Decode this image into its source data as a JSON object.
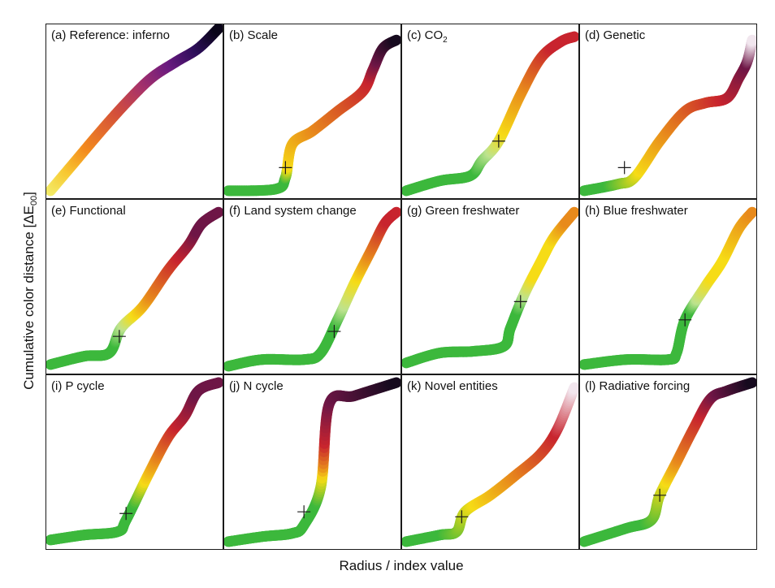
{
  "figure": {
    "xlabel": "Radius / index value",
    "ylabel_main": "Cumulative color distance [ΔE",
    "ylabel_sub": "00",
    "ylabel_close": "]"
  },
  "colors": {
    "green": "#3cb83c",
    "lightgreen": "#bde38f",
    "yellow": "#f6dc16",
    "orange": "#e88a1c",
    "red": "#c8242e",
    "darkred": "#6e1646",
    "black": "#150a1e",
    "white": "#f2e8f0"
  },
  "chart_data": [
    {
      "type": "line",
      "title": "(a) Reference: inferno",
      "xlim": [
        0,
        1
      ],
      "ylim": [
        0,
        1
      ],
      "x": [
        0,
        0.15,
        0.3,
        0.45,
        0.6,
        0.75,
        0.88,
        1
      ],
      "y": [
        0.02,
        0.2,
        0.38,
        0.55,
        0.7,
        0.8,
        0.88,
        1
      ],
      "colormap": [
        [
          "#f2ed6a",
          0
        ],
        [
          "#f8c932",
          0.12
        ],
        [
          "#f38a1e",
          0.25
        ],
        [
          "#d4503a",
          0.45
        ],
        [
          "#a8336a",
          0.6
        ],
        [
          "#6a1a80",
          0.75
        ],
        [
          "#2d0e5a",
          0.88
        ],
        [
          "#0a0518",
          1
        ]
      ],
      "marker": null
    },
    {
      "type": "line",
      "title": "(b) Scale",
      "xlim": [
        0,
        1
      ],
      "ylim": [
        0,
        1
      ],
      "x": [
        0,
        0.28,
        0.34,
        0.38,
        0.5,
        0.65,
        0.8,
        0.86,
        0.92,
        1
      ],
      "y": [
        0.02,
        0.03,
        0.1,
        0.3,
        0.38,
        0.5,
        0.62,
        0.75,
        0.88,
        0.93
      ],
      "colormap": [
        [
          "green",
          0
        ],
        [
          "green",
          0.25
        ],
        [
          "yellow",
          0.3
        ],
        [
          "orange",
          0.5
        ],
        [
          "red",
          0.8
        ],
        [
          "darkred",
          0.88
        ],
        [
          "black",
          1
        ]
      ],
      "marker": [
        0.34,
        0.16
      ]
    },
    {
      "type": "line",
      "title": "(c) CO",
      "title_sub": "2",
      "xlim": [
        0,
        1
      ],
      "ylim": [
        0,
        1
      ],
      "x": [
        0,
        0.2,
        0.38,
        0.45,
        0.55,
        0.68,
        0.8,
        0.92,
        1
      ],
      "y": [
        0.02,
        0.08,
        0.11,
        0.2,
        0.32,
        0.6,
        0.82,
        0.92,
        0.95
      ],
      "colormap": [
        [
          "green",
          0
        ],
        [
          "green",
          0.3
        ],
        [
          "lightgreen",
          0.4
        ],
        [
          "yellow",
          0.5
        ],
        [
          "orange",
          0.7
        ],
        [
          "red",
          0.9
        ],
        [
          "red",
          1
        ]
      ],
      "marker": [
        0.55,
        0.32
      ]
    },
    {
      "type": "line",
      "title": "(d) Genetic",
      "xlim": [
        0,
        1
      ],
      "ylim": [
        0,
        1
      ],
      "x": [
        0,
        0.2,
        0.3,
        0.45,
        0.6,
        0.72,
        0.85,
        0.92,
        0.97,
        1
      ],
      "y": [
        0.02,
        0.06,
        0.1,
        0.32,
        0.5,
        0.55,
        0.58,
        0.7,
        0.8,
        0.93
      ],
      "colormap": [
        [
          "green",
          0
        ],
        [
          "green",
          0.1
        ],
        [
          "yellow",
          0.25
        ],
        [
          "orange",
          0.45
        ],
        [
          "red",
          0.72
        ],
        [
          "darkred",
          0.9
        ],
        [
          "white",
          1
        ]
      ],
      "marker": [
        0.24,
        0.16
      ]
    },
    {
      "type": "line",
      "title": "(e) Functional",
      "xlim": [
        0,
        1
      ],
      "ylim": [
        0,
        1
      ],
      "x": [
        0,
        0.2,
        0.35,
        0.42,
        0.55,
        0.7,
        0.82,
        0.9,
        1
      ],
      "y": [
        0.03,
        0.08,
        0.1,
        0.25,
        0.38,
        0.6,
        0.75,
        0.88,
        0.95
      ],
      "colormap": [
        [
          "green",
          0
        ],
        [
          "green",
          0.3
        ],
        [
          "lightgreen",
          0.38
        ],
        [
          "yellow",
          0.45
        ],
        [
          "orange",
          0.55
        ],
        [
          "red",
          0.75
        ],
        [
          "darkred",
          0.88
        ],
        [
          "darkred",
          1
        ]
      ],
      "marker": [
        0.41,
        0.2
      ]
    },
    {
      "type": "line",
      "title": "(f) Land system change",
      "xlim": [
        0,
        1
      ],
      "ylim": [
        0,
        1
      ],
      "x": [
        0,
        0.2,
        0.45,
        0.55,
        0.65,
        0.75,
        0.85,
        0.93,
        1
      ],
      "y": [
        0.02,
        0.06,
        0.06,
        0.1,
        0.3,
        0.52,
        0.72,
        0.88,
        0.95
      ],
      "colormap": [
        [
          "green",
          0
        ],
        [
          "green",
          0.5
        ],
        [
          "lightgreen",
          0.58
        ],
        [
          "yellow",
          0.7
        ],
        [
          "orange",
          0.8
        ],
        [
          "red",
          0.95
        ],
        [
          "red",
          1
        ]
      ],
      "marker": [
        0.63,
        0.23
      ]
    },
    {
      "type": "line",
      "title": "(g) Green freshwater",
      "xlim": [
        0,
        1
      ],
      "ylim": [
        0,
        1
      ],
      "x": [
        0,
        0.2,
        0.4,
        0.58,
        0.62,
        0.7,
        0.8,
        0.88,
        1
      ],
      "y": [
        0.04,
        0.1,
        0.11,
        0.14,
        0.25,
        0.45,
        0.65,
        0.8,
        0.95
      ],
      "colormap": [
        [
          "green",
          0
        ],
        [
          "green",
          0.55
        ],
        [
          "lightgreen",
          0.62
        ],
        [
          "yellow",
          0.7
        ],
        [
          "yellow",
          0.85
        ],
        [
          "orange",
          0.95
        ],
        [
          "orange",
          1
        ]
      ],
      "marker": [
        0.68,
        0.41
      ]
    },
    {
      "type": "line",
      "title": "(h) Blue freshwater",
      "xlim": [
        0,
        1
      ],
      "ylim": [
        0,
        1
      ],
      "x": [
        0,
        0.25,
        0.5,
        0.55,
        0.6,
        0.72,
        0.82,
        0.92,
        1
      ],
      "y": [
        0.03,
        0.06,
        0.06,
        0.1,
        0.3,
        0.5,
        0.65,
        0.85,
        0.95
      ],
      "colormap": [
        [
          "green",
          0
        ],
        [
          "green",
          0.55
        ],
        [
          "lightgreen",
          0.6
        ],
        [
          "yellow",
          0.7
        ],
        [
          "yellow",
          0.8
        ],
        [
          "orange",
          1
        ]
      ],
      "marker": [
        0.6,
        0.3
      ]
    },
    {
      "type": "line",
      "title": "(i) P cycle",
      "xlim": [
        0,
        1
      ],
      "ylim": [
        0,
        1
      ],
      "x": [
        0,
        0.2,
        0.4,
        0.45,
        0.58,
        0.7,
        0.8,
        0.88,
        1
      ],
      "y": [
        0.03,
        0.06,
        0.08,
        0.15,
        0.42,
        0.65,
        0.78,
        0.93,
        0.98
      ],
      "colormap": [
        [
          "green",
          0
        ],
        [
          "green",
          0.4
        ],
        [
          "yellow",
          0.5
        ],
        [
          "orange",
          0.6
        ],
        [
          "red",
          0.75
        ],
        [
          "darkred",
          0.9
        ],
        [
          "darkred",
          1
        ]
      ],
      "marker": [
        0.45,
        0.19
      ]
    },
    {
      "type": "line",
      "title": "(j) N cycle",
      "xlim": [
        0,
        1
      ],
      "ylim": [
        0,
        1
      ],
      "x": [
        0,
        0.2,
        0.38,
        0.45,
        0.55,
        0.6,
        0.75,
        1
      ],
      "y": [
        0.02,
        0.05,
        0.07,
        0.12,
        0.35,
        0.85,
        0.9,
        0.98
      ],
      "colormap": [
        [
          "green",
          0
        ],
        [
          "green",
          0.38
        ],
        [
          "yellow",
          0.48
        ],
        [
          "orange",
          0.52
        ],
        [
          "red",
          0.6
        ],
        [
          "darkred",
          0.75
        ],
        [
          "black",
          1
        ]
      ],
      "marker": [
        0.45,
        0.2
      ]
    },
    {
      "type": "line",
      "title": "(k) Novel entities",
      "xlim": [
        0,
        1
      ],
      "ylim": [
        0,
        1
      ],
      "x": [
        0,
        0.2,
        0.3,
        0.35,
        0.5,
        0.65,
        0.8,
        0.9,
        1
      ],
      "y": [
        0.02,
        0.06,
        0.08,
        0.2,
        0.3,
        0.42,
        0.55,
        0.7,
        0.95
      ],
      "colormap": [
        [
          "green",
          0
        ],
        [
          "green",
          0.15
        ],
        [
          "yellow",
          0.35
        ],
        [
          "orange",
          0.55
        ],
        [
          "red",
          0.8
        ],
        [
          "white",
          1
        ]
      ],
      "marker": [
        0.33,
        0.17
      ]
    },
    {
      "type": "line",
      "title": "(l) Radiative forcing",
      "xlim": [
        0,
        1
      ],
      "ylim": [
        0,
        1
      ],
      "x": [
        0,
        0.25,
        0.4,
        0.45,
        0.55,
        0.65,
        0.75,
        0.85,
        1
      ],
      "y": [
        0.02,
        0.1,
        0.15,
        0.3,
        0.5,
        0.7,
        0.88,
        0.93,
        0.98
      ],
      "colormap": [
        [
          "green",
          0
        ],
        [
          "green",
          0.25
        ],
        [
          "yellow",
          0.45
        ],
        [
          "orange",
          0.55
        ],
        [
          "red",
          0.75
        ],
        [
          "darkred",
          0.85
        ],
        [
          "black",
          1
        ]
      ],
      "marker": [
        0.45,
        0.3
      ]
    }
  ]
}
